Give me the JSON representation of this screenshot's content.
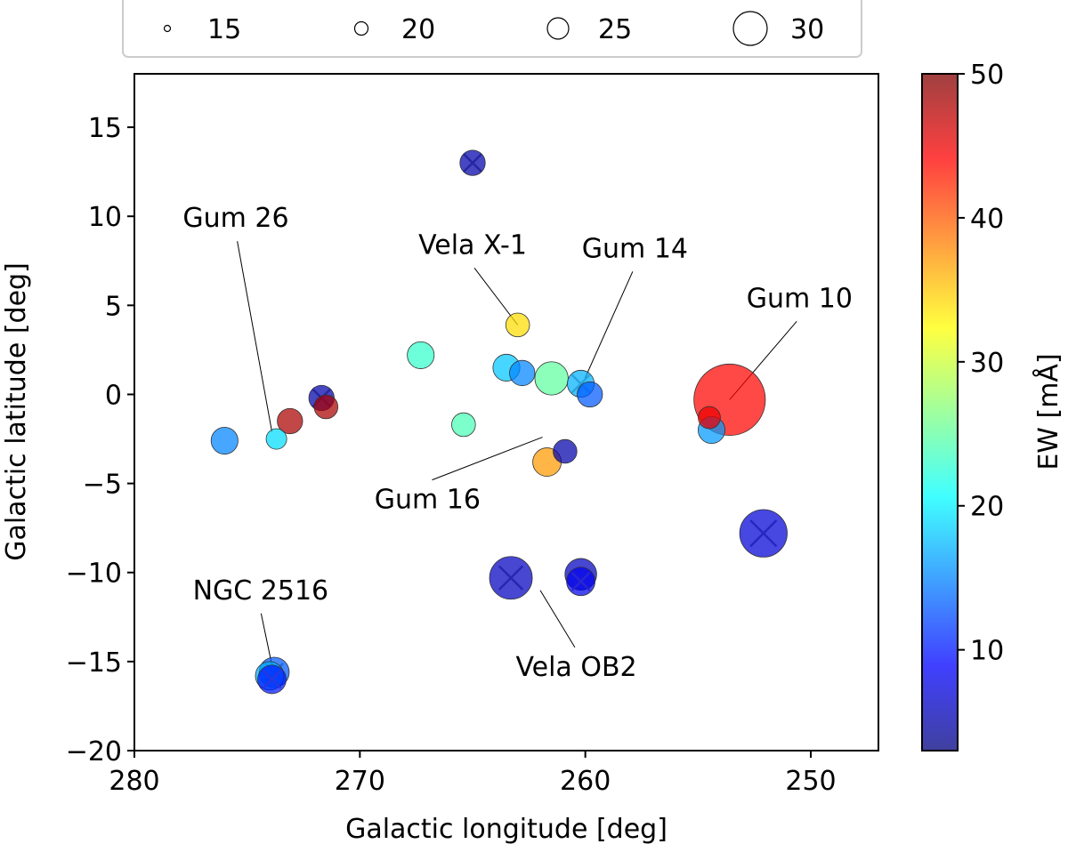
{
  "chart_data": {
    "type": "scatter",
    "xlabel": "Galactic longitude [deg]",
    "ylabel": "Galactic latitude [deg]",
    "xlim": [
      280,
      247
    ],
    "ylim": [
      -20,
      18
    ],
    "x_ticks": [
      280,
      270,
      260,
      250
    ],
    "y_ticks": [
      -20,
      -15,
      -10,
      -5,
      0,
      5,
      10,
      15
    ],
    "colorbar": {
      "label": "EW [mÅ]",
      "range": [
        3,
        50
      ],
      "ticks": [
        10,
        20,
        30,
        40,
        50
      ],
      "colormap": [
        "#00007f",
        "#0000ff",
        "#007fff",
        "#00ffff",
        "#7fff7f",
        "#ffff00",
        "#ff7f00",
        "#ff0000",
        "#7f0000"
      ]
    },
    "size_legend": {
      "title": "",
      "entries": [
        {
          "label": "15",
          "value": 15
        },
        {
          "label": "20",
          "value": 20
        },
        {
          "label": "25",
          "value": 25
        },
        {
          "label": "30",
          "value": 30
        }
      ]
    },
    "points": [
      {
        "l": 265.0,
        "b": 13.0,
        "ew": 5,
        "size": 16,
        "cross": true
      },
      {
        "l": 263.0,
        "b": 3.9,
        "ew": 34,
        "size": 15,
        "cross": false
      },
      {
        "l": 267.3,
        "b": 2.2,
        "ew": 23,
        "size": 17,
        "cross": false
      },
      {
        "l": 263.5,
        "b": 1.5,
        "ew": 18,
        "size": 17,
        "cross": false
      },
      {
        "l": 262.8,
        "b": 1.2,
        "ew": 15,
        "size": 16,
        "cross": false
      },
      {
        "l": 261.5,
        "b": 0.9,
        "ew": 25,
        "size": 21,
        "cross": false
      },
      {
        "l": 260.2,
        "b": 0.6,
        "ew": 17,
        "size": 17,
        "cross": true
      },
      {
        "l": 259.8,
        "b": 0.0,
        "ew": 13,
        "size": 16,
        "cross": false
      },
      {
        "l": 253.6,
        "b": -0.3,
        "ew": 44,
        "size": 35,
        "cross": false
      },
      {
        "l": 254.5,
        "b": -1.3,
        "ew": 45,
        "size": 14,
        "cross": false
      },
      {
        "l": 254.4,
        "b": -2.0,
        "ew": 16,
        "size": 17,
        "cross": false
      },
      {
        "l": 271.7,
        "b": -0.2,
        "ew": 5,
        "size": 16,
        "cross": true
      },
      {
        "l": 271.5,
        "b": -0.7,
        "ew": 48,
        "size": 15,
        "cross": false
      },
      {
        "l": 273.1,
        "b": -1.5,
        "ew": 48,
        "size": 16,
        "cross": false
      },
      {
        "l": 276.0,
        "b": -2.6,
        "ew": 15,
        "size": 17,
        "cross": false
      },
      {
        "l": 273.7,
        "b": -2.5,
        "ew": 19,
        "size": 13,
        "cross": false
      },
      {
        "l": 265.4,
        "b": -1.7,
        "ew": 24,
        "size": 15,
        "cross": false
      },
      {
        "l": 261.7,
        "b": -3.8,
        "ew": 37,
        "size": 18,
        "cross": false
      },
      {
        "l": 260.9,
        "b": -3.2,
        "ew": 5,
        "size": 15,
        "cross": false
      },
      {
        "l": 263.3,
        "b": -10.3,
        "ew": 6,
        "size": 27,
        "cross": true
      },
      {
        "l": 260.2,
        "b": -10.1,
        "ew": 6,
        "size": 20,
        "cross": false
      },
      {
        "l": 260.2,
        "b": -10.5,
        "ew": 8,
        "size": 18,
        "cross": true
      },
      {
        "l": 252.1,
        "b": -7.8,
        "ew": 7,
        "size": 30,
        "cross": true
      },
      {
        "l": 273.8,
        "b": -15.6,
        "ew": 13,
        "size": 19,
        "cross": true
      },
      {
        "l": 274.0,
        "b": -15.8,
        "ew": 17,
        "size": 18,
        "cross": false
      },
      {
        "l": 273.9,
        "b": -16.0,
        "ew": 10,
        "size": 18,
        "cross": true
      }
    ],
    "annotations": [
      {
        "text": "Gum 26",
        "text_l": 275.5,
        "text_b": 9.4,
        "point_l": 273.9,
        "point_b": -2.1
      },
      {
        "text": "Vela X-1",
        "text_l": 265.0,
        "text_b": 7.9,
        "point_l": 263.0,
        "point_b": 3.9
      },
      {
        "text": "Gum 14",
        "text_l": 257.8,
        "text_b": 7.7,
        "point_l": 260.3,
        "point_b": 0.1
      },
      {
        "text": "Gum 10",
        "text_l": 250.5,
        "text_b": 4.9,
        "point_l": 253.6,
        "point_b": -0.3
      },
      {
        "text": "Gum 16",
        "text_l": 267.0,
        "text_b": -6.4,
        "point_l": 261.9,
        "point_b": -2.4
      },
      {
        "text": "Vela OB2",
        "text_l": 260.4,
        "text_b": -15.8,
        "point_l": 262.0,
        "point_b": -11.0
      },
      {
        "text": "NGC 2516",
        "text_l": 274.4,
        "text_b": -11.5,
        "point_l": 273.9,
        "point_b": -15.2
      }
    ]
  }
}
